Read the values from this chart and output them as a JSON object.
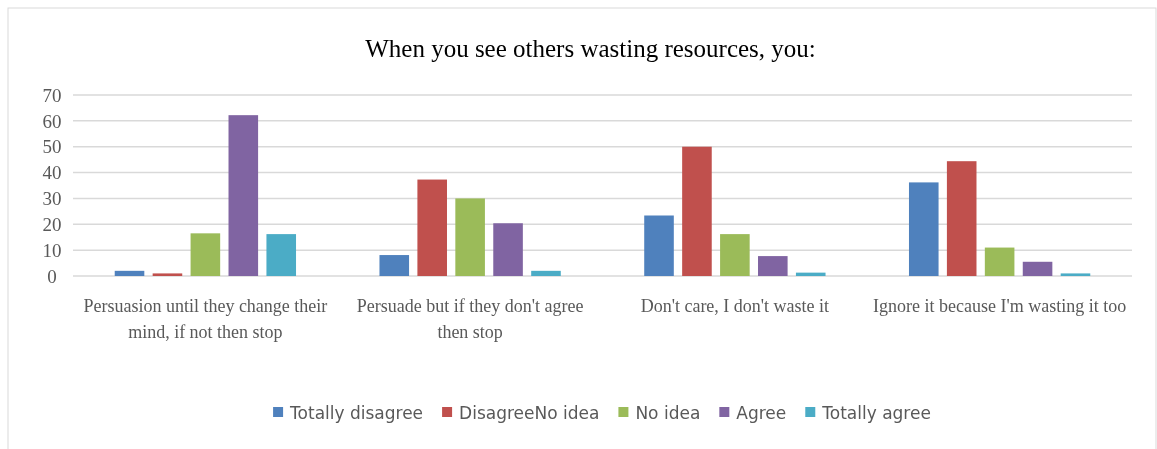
{
  "chart_data": {
    "type": "bar",
    "title": "When you see others wasting resources, you:",
    "categories": [
      "Persuasion until they change their mind, if not then stop",
      "Persuade but if they don't agree then stop",
      "Don't care, I don't waste it",
      "Ignore it because I'm wasting it too"
    ],
    "series": [
      {
        "name": "Totally disagree",
        "color": "#4f81bd",
        "values": [
          2,
          8.1,
          23.4,
          36.2
        ]
      },
      {
        "name": "DisagreeNo idea",
        "color": "#c0504d",
        "values": [
          1,
          37.3,
          50,
          44.4
        ]
      },
      {
        "name": "No idea",
        "color": "#9bbb59",
        "values": [
          16.5,
          30,
          16.2,
          11
        ]
      },
      {
        "name": "Agree",
        "color": "#8064a2",
        "values": [
          62.2,
          20.4,
          7.7,
          5.5
        ]
      },
      {
        "name": "Totally agree",
        "color": "#4bacc6",
        "values": [
          16.2,
          2,
          1.3,
          1
        ]
      }
    ],
    "ylim": [
      0,
      70
    ],
    "yticks": [
      0,
      10,
      20,
      30,
      40,
      50,
      60,
      70
    ],
    "grid": "y",
    "legend": "bottom"
  }
}
